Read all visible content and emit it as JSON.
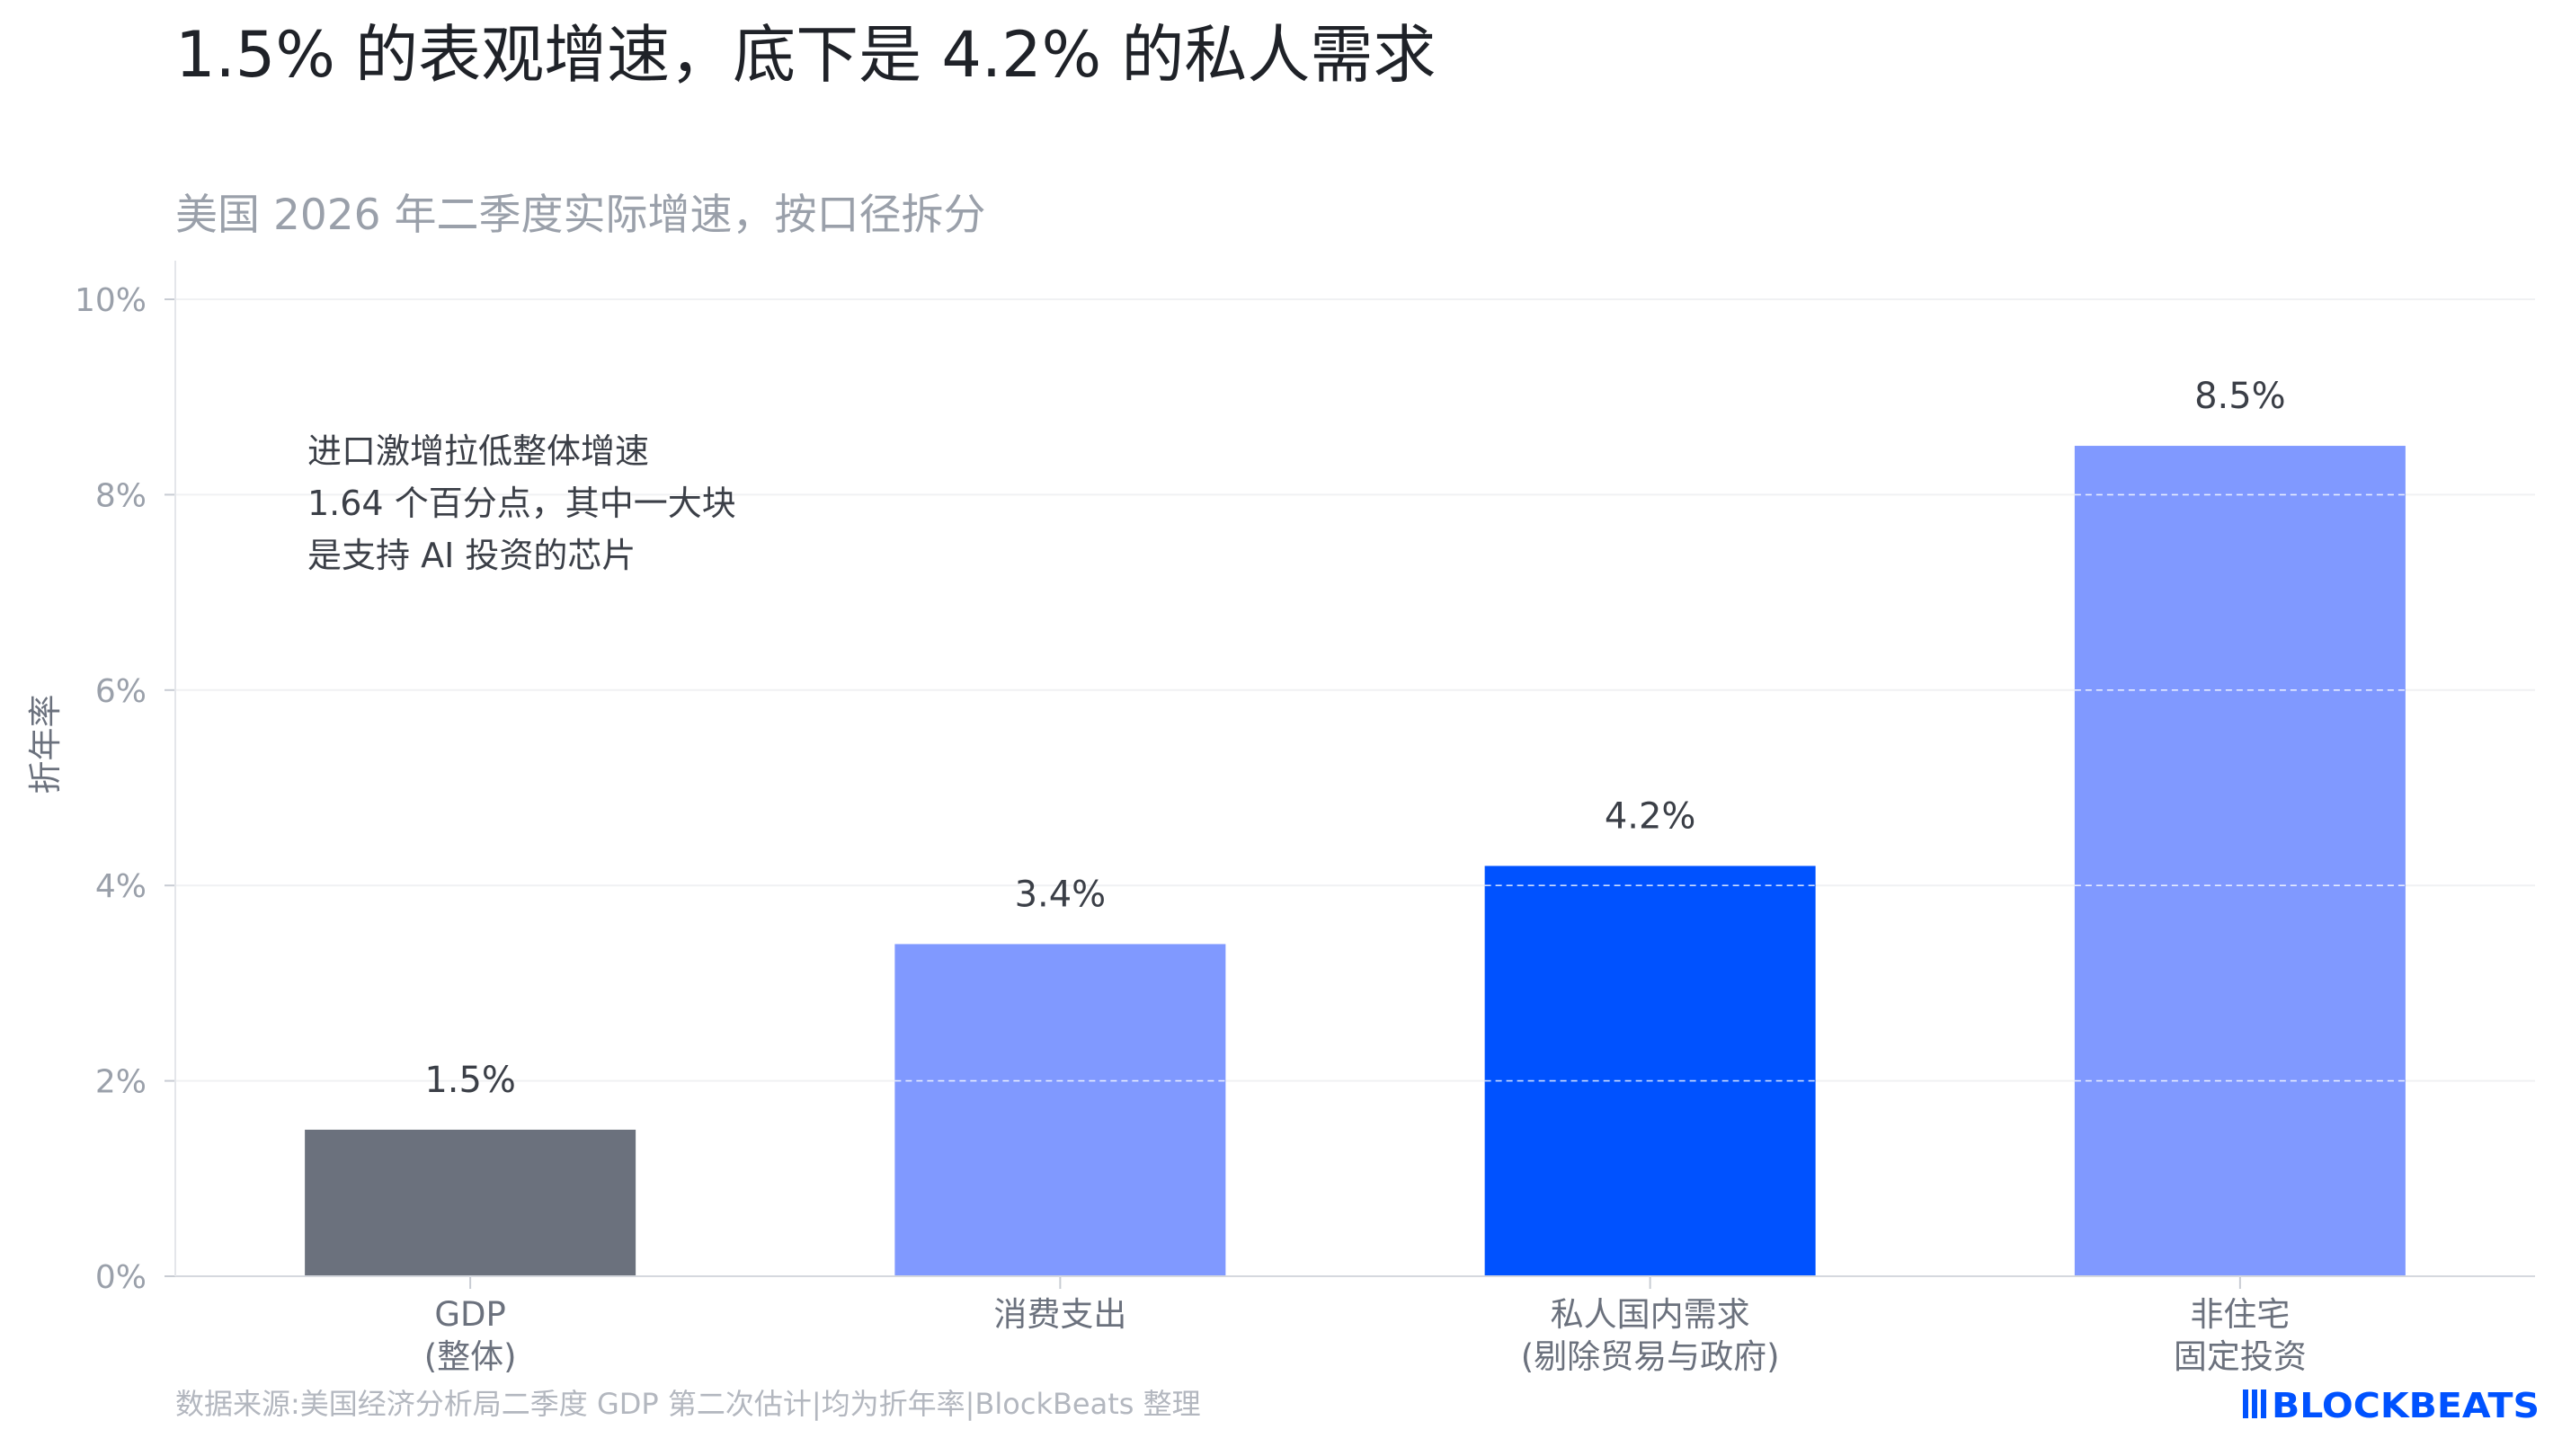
{
  "chart_data": {
    "type": "bar",
    "title": "1.5% 的表观增速，底下是 4.2% 的私人需求",
    "subtitle": "美国 2026 年二季度实际增速，按口径拆分",
    "ylabel": "折年率",
    "ylim": [
      0,
      10
    ],
    "yticks": [
      "0%",
      "2%",
      "4%",
      "6%",
      "8%",
      "10%"
    ],
    "grid": true,
    "categories": [
      {
        "line1": "GDP",
        "line2": "(整体)"
      },
      {
        "line1": "消费支出",
        "line2": ""
      },
      {
        "line1": "私人国内需求",
        "line2": "(剔除贸易与政府)"
      },
      {
        "line1": "非住宅",
        "line2": "固定投资"
      }
    ],
    "values": [
      1.5,
      3.4,
      4.2,
      8.5
    ],
    "value_labels": [
      "1.5%",
      "3.4%",
      "4.2%",
      "8.5%"
    ],
    "colors": [
      "#6b717d",
      "#8099ff",
      "#0052ff",
      "#8099ff"
    ],
    "annotation": [
      "进口激增拉低整体增速",
      "1.64 个百分点，其中一大块",
      "是支持 AI 投资的芯片"
    ],
    "source": "数据来源:美国经济分析局二季度 GDP 第二次估计|均为折年率|BlockBeats 整理"
  },
  "brand": {
    "logo_text": "BLOCKBEATS",
    "logo_color": "#0052ff"
  }
}
